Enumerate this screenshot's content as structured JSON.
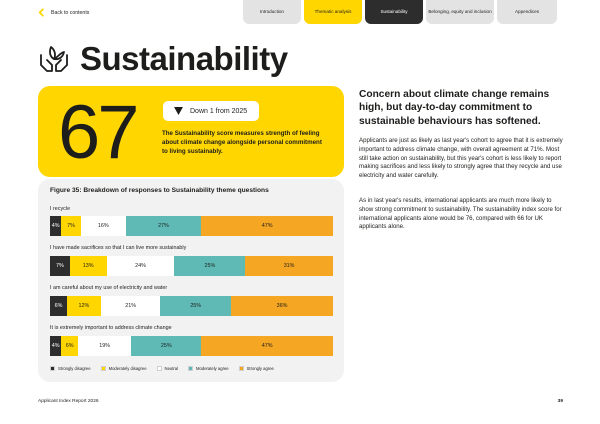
{
  "nav": {
    "back_label": "Back to contents",
    "tabs": [
      {
        "label": "Introduction"
      },
      {
        "label": "Thematic analysis"
      },
      {
        "label": "Sustainability"
      },
      {
        "label": "Belonging, equity and inclusion"
      },
      {
        "label": "Appendices"
      }
    ]
  },
  "header": {
    "title": "Sustainability",
    "icon": "hands-leaf-icon"
  },
  "score": {
    "value": "67",
    "change": "Down 1 from 2025",
    "change_icon": "triangle-down-icon",
    "description": "The Sustainability score measures strength of feeling about climate change alongside personal commitment to living sustainably."
  },
  "right": {
    "heading": "Concern about climate change remains high, but day-to-day commitment to sustainable behaviours has softened.",
    "paragraph1": "Applicants are just as likely as last year's cohort to agree that it is extremely important to address climate change, with overall agreement at 71%. Most still take action on sustainability, but this year's cohort is less likely to report making sacrifices and less likely to strongly agree that they recycle and use electricity and water carefully.",
    "paragraph2": "As in last year's results, international applicants are much more likely to show strong commitment to sustainability. The sustainability index score for international applicants alone would be 76, compared with 66 for UK applicants alone."
  },
  "colors": {
    "strongly_disagree": "#2d2d2d",
    "moderately_disagree": "#ffd600",
    "neutral": "#ffffff",
    "moderately_agree": "#5fbab6",
    "strongly_agree": "#f5a623",
    "brand_yellow": "#ffd600",
    "panel_grey": "#f2f2f2"
  },
  "chart_data": {
    "type": "bar",
    "stacked": true,
    "orientation": "horizontal",
    "title": "Figure 35: Breakdown of responses to Sustainability theme questions",
    "categories": [
      "I recycle",
      "I have made sacrifices so that I can live more sustainably",
      "I am careful about my use of electricity and water",
      "It is extremely important to address climate change"
    ],
    "series": [
      {
        "name": "Strongly disagree",
        "values": [
          4,
          7,
          6,
          4
        ],
        "labels": [
          "4%",
          "7%",
          "6%",
          "4%"
        ]
      },
      {
        "name": "Moderately disagree",
        "values": [
          7,
          13,
          12,
          6
        ],
        "labels": [
          "7%",
          "13%",
          "12%",
          "6%"
        ]
      },
      {
        "name": "Neutral",
        "values": [
          16,
          24,
          21,
          19
        ],
        "labels": [
          "16%",
          "24%",
          "21%",
          "19%"
        ]
      },
      {
        "name": "Moderately agree",
        "values": [
          27,
          25,
          25,
          25
        ],
        "labels": [
          "27%",
          "25%",
          "25%",
          "25%"
        ]
      },
      {
        "name": "Strongly agree",
        "values": [
          47,
          31,
          36,
          47
        ],
        "labels": [
          "47%",
          "31%",
          "36%",
          "47%"
        ]
      }
    ],
    "legend_position": "bottom"
  },
  "footer": {
    "left": "Applicant Index Report 2026",
    "page": "39"
  }
}
